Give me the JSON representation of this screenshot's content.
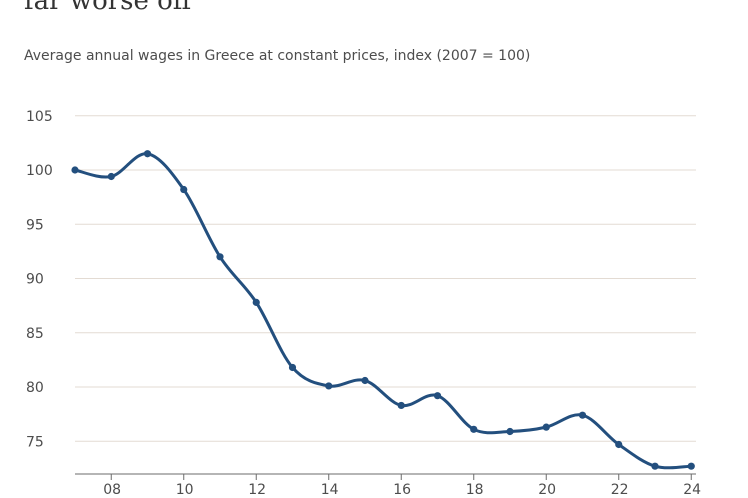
{
  "headline": "far worse off",
  "chart_data": {
    "type": "line",
    "title": "Average annual wages in Greece at constant prices, index (2007 = 100)",
    "xlabel": "",
    "ylabel": "",
    "ylim": [
      72,
      105
    ],
    "yticks": [
      75,
      80,
      85,
      90,
      95,
      100,
      105
    ],
    "x_tick_labels": [
      "08",
      "10",
      "12",
      "14",
      "16",
      "18",
      "20",
      "22",
      "24"
    ],
    "grid": true,
    "color": "#234f7e",
    "series": [
      {
        "values": [
          100.0,
          99.4,
          101.5,
          98.2,
          92.0,
          87.8,
          81.8,
          80.1,
          80.6,
          78.3,
          79.2,
          76.1,
          75.9,
          76.3,
          77.4,
          74.7,
          72.7,
          72.7
        ]
      }
    ]
  }
}
